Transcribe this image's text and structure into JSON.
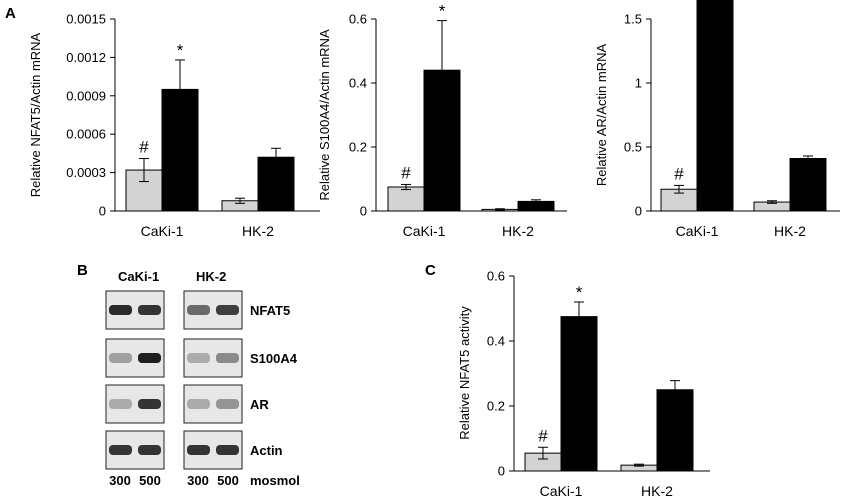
{
  "panels": {
    "a": "A",
    "b": "B",
    "c": "C"
  },
  "colors": {
    "light": "#d3d3d3",
    "dark": "#000000"
  },
  "chart_data": [
    {
      "type": "bar",
      "panel": "A",
      "ylabel": "Relative NFAT5/Actin mRNA",
      "categories": [
        "CaKi-1",
        "HK-2"
      ],
      "yticks": [
        "0",
        "0.0003",
        "0.0006",
        "0.0009",
        "0.0012",
        "0.0015"
      ],
      "ylim": [
        0,
        0.0015
      ],
      "series": [
        {
          "color_key": "light",
          "values": [
            0.00032,
            8e-05
          ],
          "errors": [
            9e-05,
            2e-05
          ]
        },
        {
          "color_key": "dark",
          "values": [
            0.00095,
            0.00042
          ],
          "errors": [
            0.00023,
            7e-05
          ]
        }
      ],
      "annotations": [
        {
          "text": "#",
          "series": 0,
          "category": 0
        },
        {
          "text": "*",
          "series": 1,
          "category": 0
        }
      ]
    },
    {
      "type": "bar",
      "panel": "A",
      "ylabel": "Relative S100A4/Actin mRNA",
      "categories": [
        "CaKi-1",
        "HK-2"
      ],
      "yticks": [
        "0",
        "0.2",
        "0.4",
        "0.6"
      ],
      "ylim": [
        0,
        0.6
      ],
      "series": [
        {
          "color_key": "light",
          "values": [
            0.075,
            0.005
          ],
          "errors": [
            0.008,
            0.002
          ]
        },
        {
          "color_key": "dark",
          "values": [
            0.44,
            0.03
          ],
          "errors": [
            0.155,
            0.005
          ]
        }
      ],
      "annotations": [
        {
          "text": "#",
          "series": 0,
          "category": 0
        },
        {
          "text": "*",
          "series": 1,
          "category": 0
        }
      ]
    },
    {
      "type": "bar",
      "panel": "A",
      "ylabel": "Relative AR/Actin mRNA",
      "categories": [
        "CaKi-1",
        "HK-2"
      ],
      "yticks": [
        "0",
        "0.5",
        "1",
        "1.5"
      ],
      "ylim": [
        0,
        1.5
      ],
      "series": [
        {
          "color_key": "light",
          "values": [
            0.17,
            0.07
          ],
          "errors": [
            0.03,
            0.01
          ]
        },
        {
          "color_key": "dark",
          "values": [
            1.67,
            0.41
          ],
          "errors": [
            0.04,
            0.02
          ]
        }
      ],
      "annotations": [
        {
          "text": "#",
          "series": 0,
          "category": 0
        },
        {
          "text": "*",
          "series": 1,
          "category": 0
        }
      ]
    },
    {
      "type": "bar",
      "panel": "C",
      "ylabel": "Relative NFAT5 activity",
      "categories": [
        "CaKi-1",
        "HK-2"
      ],
      "yticks": [
        "0",
        "0.2",
        "0.4",
        "0.6"
      ],
      "ylim": [
        0,
        0.6
      ],
      "series": [
        {
          "color_key": "light",
          "values": [
            0.055,
            0.018
          ],
          "errors": [
            0.018,
            0.003
          ]
        },
        {
          "color_key": "dark",
          "values": [
            0.475,
            0.25
          ],
          "errors": [
            0.045,
            0.028
          ]
        }
      ],
      "annotations": [
        {
          "text": "#",
          "series": 0,
          "category": 0
        },
        {
          "text": "*",
          "series": 1,
          "category": 0
        }
      ]
    }
  ],
  "blot": {
    "groups": [
      "CaKi-1",
      "HK-2"
    ],
    "rows": [
      {
        "label": "NFAT5"
      },
      {
        "label": "S100A4"
      },
      {
        "label": "AR"
      },
      {
        "label": "Actin"
      }
    ],
    "lanes": [
      "300",
      "500",
      "300",
      "500"
    ],
    "unit": "mosmol"
  }
}
